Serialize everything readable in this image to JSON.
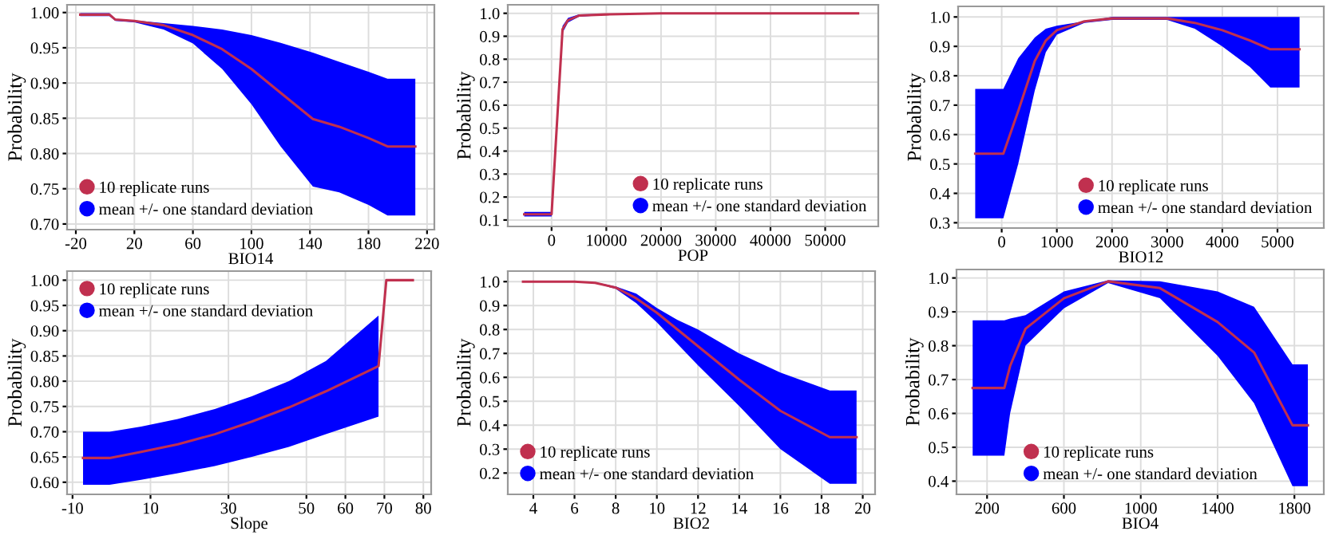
{
  "chart_data": [
    {
      "type": "line",
      "xlabel": "BIO14",
      "ylabel": "Probability",
      "xlim": [
        -26,
        225
      ],
      "ylim": [
        0.692,
        1.011
      ],
      "xticks": [
        -20,
        20,
        60,
        100,
        140,
        180,
        220
      ],
      "yticks": [
        {
          "value": 0.7,
          "label": "0.70"
        },
        {
          "value": 0.75,
          "label": "0.75"
        },
        {
          "value": 0.8,
          "label": "0.80"
        },
        {
          "value": 0.85,
          "label": "0.85"
        },
        {
          "value": 0.9,
          "label": "0.90"
        },
        {
          "value": 0.95,
          "label": "0.95"
        },
        {
          "value": 1.0,
          "label": "1.00"
        }
      ],
      "grid": true,
      "legend": "bottom left",
      "series": [
        {
          "type": "line",
          "name": "10 replicate runs",
          "color": "#c0304f",
          "x": [
            -17,
            3,
            7,
            20,
            40,
            60,
            80,
            100,
            120,
            142,
            160,
            180,
            193,
            212
          ],
          "values": [
            0.997,
            0.997,
            0.99,
            0.988,
            0.982,
            0.968,
            0.948,
            0.92,
            0.886,
            0.849,
            0.838,
            0.822,
            0.81,
            0.81
          ]
        },
        {
          "type": "line",
          "name": "mean +/- one standard deviation",
          "color": "#0000ff",
          "x": [
            -17,
            3,
            7,
            20,
            40,
            60,
            80,
            100,
            120,
            142,
            160,
            180,
            193,
            212
          ],
          "values": [
            null,
            null,
            null,
            null,
            null,
            null,
            null,
            null,
            null,
            null,
            null,
            null,
            null,
            null
          ],
          "lower": [
            0.995,
            0.995,
            0.988,
            0.986,
            0.976,
            0.956,
            0.92,
            0.87,
            0.81,
            0.753,
            0.745,
            0.727,
            0.712,
            0.712
          ],
          "upper": [
            0.999,
            0.999,
            0.991,
            0.989,
            0.985,
            0.981,
            0.976,
            0.968,
            0.957,
            0.943,
            0.93,
            0.916,
            0.906,
            0.906
          ]
        }
      ]
    },
    {
      "type": "line",
      "xlabel": "POP",
      "ylabel": "Probability",
      "xlim": [
        -8000,
        59700
      ],
      "ylim": [
        0.072,
        1.037
      ],
      "xticks": [
        0,
        10000,
        20000,
        30000,
        40000,
        50000
      ],
      "yticks": [
        0.1,
        0.2,
        0.3,
        0.4,
        0.5,
        0.6,
        0.7,
        0.8,
        0.9,
        {
          "value": 1.0,
          "label": "1.0"
        }
      ],
      "grid": true,
      "legend": "bottom right",
      "series": [
        {
          "type": "line",
          "name": "10 replicate runs",
          "color": "#c0304f",
          "x": [
            -5000,
            0,
            2000,
            3000,
            5000,
            10000,
            20000,
            56000
          ],
          "values": [
            0.125,
            0.125,
            0.93,
            0.97,
            0.99,
            0.995,
            1.0,
            1.0
          ]
        },
        {
          "type": "line",
          "name": "mean +/- one standard deviation",
          "color": "#0000ff",
          "x": [
            -5000,
            0,
            2000,
            3000,
            5000,
            10000,
            20000,
            56000
          ],
          "values": [
            null,
            null,
            null,
            null,
            null,
            null,
            null,
            null
          ],
          "lower": [
            0.115,
            0.115,
            0.915,
            0.96,
            0.985,
            0.993,
            0.998,
            0.998
          ],
          "upper": [
            0.135,
            0.135,
            0.945,
            0.98,
            0.995,
            0.997,
            1.0,
            1.0
          ]
        }
      ]
    },
    {
      "type": "line",
      "xlabel": "BIO12",
      "ylabel": "Probability",
      "xlim": [
        -790,
        5840
      ],
      "ylim": [
        0.282,
        1.036
      ],
      "xticks": [
        0,
        1000,
        2000,
        3000,
        4000,
        5000
      ],
      "yticks": [
        0.3,
        0.4,
        0.5,
        0.6,
        0.7,
        0.8,
        0.9,
        {
          "value": 1.0,
          "label": "1.0"
        }
      ],
      "grid": true,
      "legend": "bottom right",
      "series": [
        {
          "type": "line",
          "name": "10 replicate runs",
          "color": "#c0304f",
          "x": [
            -480,
            30,
            300,
            600,
            800,
            1000,
            1500,
            2000,
            3000,
            3500,
            4000,
            4500,
            4870,
            5400
          ],
          "values": [
            0.535,
            0.535,
            0.68,
            0.85,
            0.92,
            0.955,
            0.985,
            0.995,
            0.995,
            0.98,
            0.955,
            0.92,
            0.89,
            0.89
          ]
        },
        {
          "type": "line",
          "name": "mean +/- one standard deviation",
          "color": "#0000ff",
          "x": [
            -480,
            30,
            300,
            600,
            800,
            1000,
            1500,
            2000,
            3000,
            3500,
            4000,
            4500,
            4870,
            5400
          ],
          "values": [
            null,
            null,
            null,
            null,
            null,
            null,
            null,
            null,
            null,
            null,
            null,
            null,
            null,
            null
          ],
          "lower": [
            0.315,
            0.315,
            0.5,
            0.75,
            0.88,
            0.94,
            0.98,
            0.99,
            0.99,
            0.96,
            0.9,
            0.83,
            0.76,
            0.76
          ],
          "upper": [
            0.755,
            0.755,
            0.86,
            0.93,
            0.96,
            0.97,
            0.985,
            1.0,
            1.0,
            1.0,
            1.0,
            1.0,
            1.0,
            1.0
          ]
        }
      ]
    },
    {
      "type": "line",
      "xlabel": "Slope",
      "ylabel": "Probability",
      "xlim": [
        -11.4,
        82
      ],
      "ylim": [
        0.576,
        1.018
      ],
      "xticks": [
        -10,
        10,
        30,
        50,
        60,
        70,
        80
      ],
      "yticks": [
        {
          "value": 0.6,
          "label": "0.60"
        },
        {
          "value": 0.65,
          "label": "0.65"
        },
        {
          "value": 0.7,
          "label": "0.70"
        },
        {
          "value": 0.75,
          "label": "0.75"
        },
        {
          "value": 0.8,
          "label": "0.80"
        },
        {
          "value": 0.85,
          "label": "0.85"
        },
        {
          "value": 0.9,
          "label": "0.90"
        },
        {
          "value": 0.95,
          "label": "0.95"
        },
        {
          "value": 1.0,
          "label": "1.00"
        }
      ],
      "grid": true,
      "legend": "top left",
      "series": [
        {
          "type": "line",
          "name": "10 replicate runs",
          "color": "#c0304f",
          "x": [
            -7.3,
            -0.5,
            7.6,
            17,
            26.5,
            36,
            45.5,
            55,
            68.5,
            70.5,
            77.3
          ],
          "values": [
            0.648,
            0.648,
            0.66,
            0.675,
            0.695,
            0.72,
            0.748,
            0.78,
            0.83,
            1.0,
            1.0
          ]
        },
        {
          "type": "line",
          "name": "mean +/- one standard deviation",
          "color": "#0000ff",
          "x": [
            -7.3,
            -0.5,
            7.6,
            17,
            26.5,
            36,
            45.5,
            55,
            68.5
          ],
          "values": [
            null,
            null,
            null,
            null,
            null,
            null,
            null,
            null,
            null
          ],
          "lower": [
            0.595,
            0.595,
            0.605,
            0.618,
            0.632,
            0.65,
            0.67,
            0.695,
            0.73
          ],
          "upper": [
            0.7,
            0.7,
            0.71,
            0.725,
            0.745,
            0.77,
            0.8,
            0.84,
            0.93
          ]
        }
      ]
    },
    {
      "type": "line",
      "xlabel": "BIO2",
      "ylabel": "Probability",
      "xlim": [
        2.76,
        20.6
      ],
      "ylim": [
        0.111,
        1.044
      ],
      "xticks": [
        4,
        6,
        8,
        10,
        12,
        14,
        16,
        18,
        20
      ],
      "yticks": [
        0.2,
        0.3,
        0.4,
        0.5,
        0.6,
        0.7,
        0.8,
        0.9,
        {
          "value": 1.0,
          "label": "1.0"
        }
      ],
      "grid": true,
      "legend": "bottom left",
      "series": [
        {
          "type": "line",
          "name": "10 replicate runs",
          "color": "#c0304f",
          "x": [
            3.5,
            6,
            7,
            8,
            9,
            10,
            11,
            12,
            14,
            16,
            18.4,
            19.7
          ],
          "values": [
            1.0,
            1.0,
            0.995,
            0.975,
            0.93,
            0.87,
            0.8,
            0.73,
            0.59,
            0.46,
            0.35,
            0.35
          ]
        },
        {
          "type": "line",
          "name": "mean +/- one standard deviation",
          "color": "#0000ff",
          "x": [
            3.5,
            6,
            7,
            8,
            9,
            10,
            11,
            12,
            14,
            16,
            18.4,
            19.7
          ],
          "values": [
            null,
            null,
            null,
            null,
            null,
            null,
            null,
            null,
            null,
            null,
            null,
            null
          ],
          "lower": [
            1.0,
            1.0,
            0.993,
            0.97,
            0.91,
            0.83,
            0.74,
            0.65,
            0.48,
            0.3,
            0.155,
            0.155
          ],
          "upper": [
            1.0,
            1.0,
            0.997,
            0.98,
            0.95,
            0.89,
            0.84,
            0.8,
            0.7,
            0.62,
            0.545,
            0.545
          ]
        }
      ]
    },
    {
      "type": "line",
      "xlabel": "BIO4",
      "ylabel": "Probability",
      "xlim": [
        41,
        1953
      ],
      "ylim": [
        0.361,
        1.025
      ],
      "xticks": [
        200,
        600,
        1000,
        1400,
        1800
      ],
      "yticks": [
        0.4,
        0.5,
        0.6,
        0.7,
        0.8,
        0.9,
        {
          "value": 1.0,
          "label": "1.0"
        }
      ],
      "grid": true,
      "legend": "bottom",
      "series": [
        {
          "type": "line",
          "name": "10 replicate runs",
          "color": "#c0304f",
          "x": [
            125,
            290,
            320,
            400,
            600,
            830,
            1100,
            1400,
            1590,
            1790,
            1870
          ],
          "values": [
            0.675,
            0.675,
            0.74,
            0.85,
            0.94,
            0.99,
            0.97,
            0.87,
            0.78,
            0.565,
            0.565
          ]
        },
        {
          "type": "line",
          "name": "mean +/- one standard deviation",
          "color": "#0000ff",
          "x": [
            125,
            290,
            320,
            400,
            600,
            830,
            1100,
            1400,
            1590,
            1790,
            1870
          ],
          "values": [
            null,
            null,
            null,
            null,
            null,
            null,
            null,
            null,
            null,
            null,
            null
          ],
          "lower": [
            0.475,
            0.475,
            0.6,
            0.8,
            0.91,
            0.985,
            0.94,
            0.77,
            0.63,
            0.385,
            0.385
          ],
          "upper": [
            0.875,
            0.875,
            0.88,
            0.89,
            0.96,
            0.993,
            0.99,
            0.96,
            0.915,
            0.745,
            0.745
          ]
        }
      ]
    }
  ]
}
